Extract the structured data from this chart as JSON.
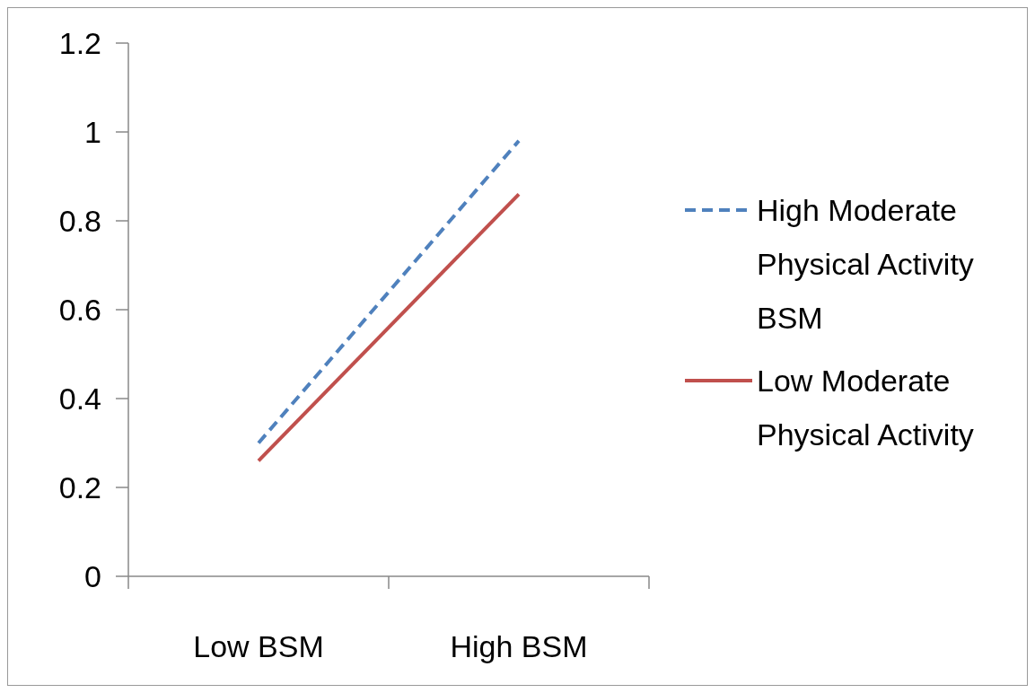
{
  "chart_data": {
    "type": "line",
    "categories": [
      "Low BSM",
      "High BSM"
    ],
    "series": [
      {
        "name": "High Moderate Physical Activity BSM",
        "color": "#4f81bd",
        "line_style": "dashed",
        "values": [
          0.3,
          0.98
        ]
      },
      {
        "name": "Low Moderate Physical Activity",
        "color": "#c0504d",
        "line_style": "solid",
        "values": [
          0.26,
          0.86
        ]
      }
    ],
    "ylim": [
      0,
      1.2
    ],
    "yticks": [
      0,
      0.2,
      0.4,
      0.6,
      0.8,
      1,
      1.2
    ],
    "grid": false,
    "legend": "right"
  }
}
